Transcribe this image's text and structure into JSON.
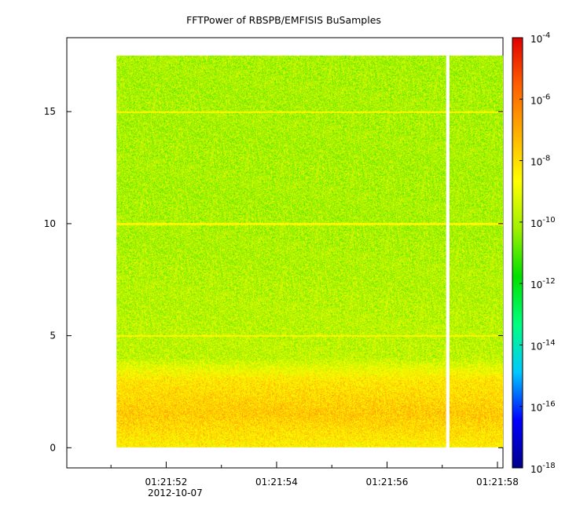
{
  "chart_data": {
    "type": "heatmap",
    "title": "FFTPower of RBSPB/EMFISIS  BuSamples",
    "xlabel": "",
    "ylabel": "",
    "x_date_label": "2012-10-07",
    "x_ticks": [
      {
        "label": "01:21:52",
        "t": 52
      },
      {
        "label": "01:21:54",
        "t": 54
      },
      {
        "label": "01:21:56",
        "t": 56
      },
      {
        "label": "01:21:58",
        "t": 58
      }
    ],
    "x_range": [
      "01:21:50.20",
      "01:21:58.10"
    ],
    "x_range_seconds": [
      50.2,
      58.1
    ],
    "x_minor_ticks_seconds": [
      51,
      53,
      55,
      57
    ],
    "data_x_range_seconds": [
      51.1,
      58.1
    ],
    "data_gaps_seconds": [
      [
        57.07,
        57.13
      ]
    ],
    "y_ticks": [
      {
        "label": "0",
        "v": 0
      },
      {
        "label": "5",
        "v": 5
      },
      {
        "label": "10",
        "v": 10
      },
      {
        "label": "15",
        "v": 15
      }
    ],
    "ylim": [
      -0.9,
      18.3
    ],
    "data_y_range": [
      0,
      17.5
    ],
    "lines_at_y": [
      5,
      10,
      15
    ],
    "colorbar": {
      "scale": "log",
      "range": [
        "1e-18",
        "1e-4"
      ],
      "log_range": [
        -18,
        -4
      ],
      "colors_low_to_high": [
        "#00008b",
        "#0000ff",
        "#00c8ff",
        "#00ff80",
        "#00e000",
        "#a0f000",
        "#ffff00",
        "#ffb000",
        "#ff6000",
        "#e00000"
      ],
      "tick_labels": [
        {
          "base": "10",
          "exp": "-4",
          "log": -4
        },
        {
          "base": "10",
          "exp": "-6",
          "log": -6
        },
        {
          "base": "10",
          "exp": "-8",
          "log": -8
        },
        {
          "base": "10",
          "exp": "-10",
          "log": -10
        },
        {
          "base": "10",
          "exp": "-12",
          "log": -12
        },
        {
          "base": "10",
          "exp": "-14",
          "log": -14
        },
        {
          "base": "10",
          "exp": "-16",
          "log": -16
        },
        {
          "base": "10",
          "exp": "-18",
          "log": -18
        }
      ]
    },
    "power_profile": [
      {
        "y": 0.0,
        "log_power": -8.4
      },
      {
        "y": 1.5,
        "log_power": -7.6
      },
      {
        "y": 3.0,
        "log_power": -8.2
      },
      {
        "y": 3.6,
        "log_power": -9.1
      },
      {
        "y": 4.0,
        "log_power": -9.7
      },
      {
        "y": 10.0,
        "log_power": -10.0
      },
      {
        "y": 17.5,
        "log_power": -10.0
      }
    ],
    "line_log_power": -8.5
  }
}
